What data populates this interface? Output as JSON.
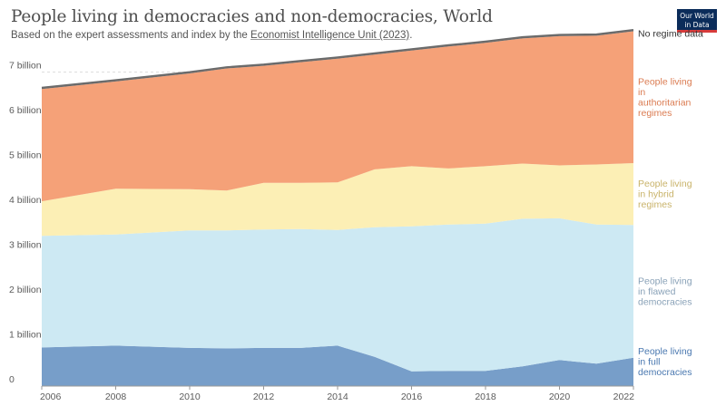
{
  "header": {
    "title": "People living in democracies and non-democracies, World",
    "subtitle_prefix": "Based on the expert assessments and index by the ",
    "subtitle_link": "Economist Intelligence Unit (2023)",
    "subtitle_suffix": "."
  },
  "logo": {
    "line1": "Our World",
    "line2": "in Data"
  },
  "chart_data": {
    "type": "area",
    "stacked": true,
    "title": "People living in democracies and non-democracies, World",
    "x": [
      2006,
      2008,
      2010,
      2011,
      2012,
      2013,
      2014,
      2015,
      2016,
      2017,
      2018,
      2019,
      2020,
      2021,
      2022
    ],
    "x_ticks": [
      2006,
      2008,
      2010,
      2012,
      2014,
      2016,
      2018,
      2020,
      2022
    ],
    "y_ticks": [
      {
        "value": 0,
        "label": "0"
      },
      {
        "value": 1000000000,
        "label": "1 billion"
      },
      {
        "value": 2000000000,
        "label": "2 billion"
      },
      {
        "value": 3000000000,
        "label": "3 billion"
      },
      {
        "value": 4000000000,
        "label": "4 billion"
      },
      {
        "value": 5000000000,
        "label": "5 billion"
      },
      {
        "value": 6000000000,
        "label": "6 billion"
      },
      {
        "value": 7000000000,
        "label": "7 billion"
      }
    ],
    "ylim": [
      0,
      8000000000
    ],
    "xlim": [
      2006,
      2022
    ],
    "grid": "horizontal-dashed",
    "legend_position": "right",
    "series": [
      {
        "name": "People living in full democracies",
        "color": "#779ec9",
        "text_color": "#4a78b0",
        "values": [
          860000000,
          900000000,
          850000000,
          840000000,
          850000000,
          850000000,
          900000000,
          650000000,
          330000000,
          340000000,
          340000000,
          440000000,
          580000000,
          500000000,
          630000000
        ]
      },
      {
        "name": "People living in flawed democracies",
        "color": "#cde9f3",
        "text_color": "#8aa2b8",
        "values": [
          2490000000,
          2480000000,
          2620000000,
          2630000000,
          2640000000,
          2650000000,
          2580000000,
          2890000000,
          3230000000,
          3260000000,
          3280000000,
          3290000000,
          3160000000,
          3100000000,
          2960000000
        ]
      },
      {
        "name": "People living in hybrid regimes",
        "color": "#fcefb5",
        "text_color": "#c9b36a",
        "values": [
          770000000,
          1020000000,
          920000000,
          890000000,
          1040000000,
          1030000000,
          1060000000,
          1290000000,
          1340000000,
          1250000000,
          1280000000,
          1230000000,
          1180000000,
          1340000000,
          1380000000
        ]
      },
      {
        "name": "People living in authoritarian regimes",
        "color": "#f5a178",
        "text_color": "#db7c52",
        "values": [
          2500000000,
          2390000000,
          2580000000,
          2720000000,
          2610000000,
          2690000000,
          2760000000,
          2560000000,
          2580000000,
          2720000000,
          2750000000,
          2790000000,
          2880000000,
          2870000000,
          2940000000
        ]
      },
      {
        "name": "No regime data",
        "color": "#6b6b6b",
        "text_color": "#333333",
        "values": [
          30000000,
          30000000,
          30000000,
          30000000,
          30000000,
          30000000,
          30000000,
          30000000,
          30000000,
          30000000,
          30000000,
          30000000,
          30000000,
          30000000,
          30000000
        ]
      }
    ]
  }
}
